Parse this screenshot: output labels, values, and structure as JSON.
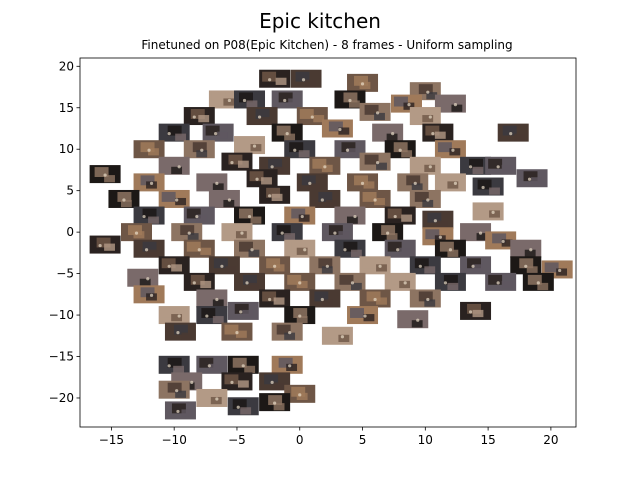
{
  "chart_data": {
    "type": "scatter",
    "title": "Epic kitchen",
    "subtitle": "Finetuned on P08(Epic Kitchen) - 8 frames - Uniform sampling",
    "xlabel": "",
    "ylabel": "",
    "xlim": [
      -17.5,
      22
    ],
    "ylim": [
      -23.5,
      21
    ],
    "xticks": [
      -15,
      -10,
      -5,
      0,
      5,
      10,
      15,
      20
    ],
    "yticks": [
      -20,
      -15,
      -10,
      -5,
      0,
      5,
      10,
      15,
      20
    ],
    "grid": false,
    "marker": "image-thumbnail",
    "colors": {
      "thumbnail_palette": [
        "#2a2220",
        "#4a3a32",
        "#6e5646",
        "#8d7462",
        "#b39a86",
        "#3b3a40",
        "#5f5860",
        "#1c1816",
        "#a07a5a",
        "#7a6a6a"
      ]
    },
    "points": [
      {
        "x": -2,
        "y": 18.5
      },
      {
        "x": 0.5,
        "y": 18.5
      },
      {
        "x": 5,
        "y": 18
      },
      {
        "x": 10,
        "y": 17
      },
      {
        "x": -6,
        "y": 16
      },
      {
        "x": -4,
        "y": 16
      },
      {
        "x": -1,
        "y": 16
      },
      {
        "x": 4,
        "y": 16
      },
      {
        "x": 8.5,
        "y": 15.5
      },
      {
        "x": 12,
        "y": 15.5
      },
      {
        "x": -8,
        "y": 14
      },
      {
        "x": -3,
        "y": 14
      },
      {
        "x": 1,
        "y": 14
      },
      {
        "x": 6,
        "y": 14.5
      },
      {
        "x": 10,
        "y": 14
      },
      {
        "x": -10,
        "y": 12
      },
      {
        "x": -6.5,
        "y": 12
      },
      {
        "x": -1,
        "y": 12
      },
      {
        "x": 3,
        "y": 12.5
      },
      {
        "x": 7,
        "y": 12
      },
      {
        "x": 11,
        "y": 12
      },
      {
        "x": 17,
        "y": 12
      },
      {
        "x": -12,
        "y": 10
      },
      {
        "x": -8,
        "y": 10
      },
      {
        "x": -4,
        "y": 10.5
      },
      {
        "x": 0,
        "y": 10
      },
      {
        "x": 4,
        "y": 10
      },
      {
        "x": 8,
        "y": 10
      },
      {
        "x": 12,
        "y": 10
      },
      {
        "x": -10,
        "y": 8
      },
      {
        "x": -5,
        "y": 8.5
      },
      {
        "x": -2,
        "y": 8
      },
      {
        "x": 2,
        "y": 8
      },
      {
        "x": 6,
        "y": 8.5
      },
      {
        "x": 10,
        "y": 8
      },
      {
        "x": 14,
        "y": 8
      },
      {
        "x": 16,
        "y": 8
      },
      {
        "x": -15.5,
        "y": 7
      },
      {
        "x": -12,
        "y": 6
      },
      {
        "x": -7,
        "y": 6
      },
      {
        "x": -3,
        "y": 6.5
      },
      {
        "x": 1,
        "y": 6
      },
      {
        "x": 5,
        "y": 6
      },
      {
        "x": 9,
        "y": 6
      },
      {
        "x": 12,
        "y": 6
      },
      {
        "x": 15,
        "y": 5.5
      },
      {
        "x": 18.5,
        "y": 6.5
      },
      {
        "x": -14,
        "y": 4
      },
      {
        "x": -10,
        "y": 4
      },
      {
        "x": -6,
        "y": 4
      },
      {
        "x": -2,
        "y": 4.5
      },
      {
        "x": 2,
        "y": 4
      },
      {
        "x": 6,
        "y": 4
      },
      {
        "x": 10,
        "y": 4
      },
      {
        "x": 15,
        "y": 2.5
      },
      {
        "x": -12,
        "y": 2
      },
      {
        "x": -8,
        "y": 2
      },
      {
        "x": -4,
        "y": 2
      },
      {
        "x": 0,
        "y": 2
      },
      {
        "x": 4,
        "y": 2
      },
      {
        "x": 8,
        "y": 2
      },
      {
        "x": 11,
        "y": 1.5
      },
      {
        "x": -13,
        "y": 0
      },
      {
        "x": -9,
        "y": 0
      },
      {
        "x": -5,
        "y": 0
      },
      {
        "x": -1,
        "y": 0
      },
      {
        "x": 3,
        "y": 0
      },
      {
        "x": 7,
        "y": 0
      },
      {
        "x": 11,
        "y": -0.5
      },
      {
        "x": 14,
        "y": 0
      },
      {
        "x": -15.5,
        "y": -1.5
      },
      {
        "x": -12,
        "y": -2
      },
      {
        "x": -8,
        "y": -2
      },
      {
        "x": -4,
        "y": -2
      },
      {
        "x": 0,
        "y": -2
      },
      {
        "x": 4,
        "y": -2
      },
      {
        "x": 8,
        "y": -2
      },
      {
        "x": 12,
        "y": -2
      },
      {
        "x": 16,
        "y": -1
      },
      {
        "x": 18,
        "y": -2
      },
      {
        "x": -10,
        "y": -4
      },
      {
        "x": -6,
        "y": -4
      },
      {
        "x": -2,
        "y": -4
      },
      {
        "x": 2,
        "y": -4
      },
      {
        "x": 6,
        "y": -4
      },
      {
        "x": 10,
        "y": -4
      },
      {
        "x": 14,
        "y": -4
      },
      {
        "x": 18,
        "y": -4
      },
      {
        "x": 20.5,
        "y": -4.5
      },
      {
        "x": -12.5,
        "y": -5.5
      },
      {
        "x": -8,
        "y": -6
      },
      {
        "x": -4,
        "y": -6
      },
      {
        "x": 0,
        "y": -6
      },
      {
        "x": 4,
        "y": -6
      },
      {
        "x": 8,
        "y": -6
      },
      {
        "x": 12,
        "y": -6
      },
      {
        "x": 16,
        "y": -6
      },
      {
        "x": 19,
        "y": -6
      },
      {
        "x": -12,
        "y": -7.5
      },
      {
        "x": -7,
        "y": -8
      },
      {
        "x": -2,
        "y": -8
      },
      {
        "x": 2,
        "y": -8
      },
      {
        "x": 6,
        "y": -8
      },
      {
        "x": 10,
        "y": -8
      },
      {
        "x": -10,
        "y": -10
      },
      {
        "x": -7,
        "y": -10
      },
      {
        "x": -4.5,
        "y": -9.5
      },
      {
        "x": 0,
        "y": -10
      },
      {
        "x": 5,
        "y": -10
      },
      {
        "x": 9,
        "y": -10.5
      },
      {
        "x": 14,
        "y": -9.5
      },
      {
        "x": -9.5,
        "y": -12
      },
      {
        "x": -5,
        "y": -12
      },
      {
        "x": -1,
        "y": -12
      },
      {
        "x": 3,
        "y": -12.5
      },
      {
        "x": -10,
        "y": -16
      },
      {
        "x": -7,
        "y": -16
      },
      {
        "x": -4.5,
        "y": -16
      },
      {
        "x": -1,
        "y": -16
      },
      {
        "x": -9,
        "y": -18
      },
      {
        "x": -5,
        "y": -18
      },
      {
        "x": -2,
        "y": -18
      },
      {
        "x": 0,
        "y": -19.5
      },
      {
        "x": -10,
        "y": -19
      },
      {
        "x": -7,
        "y": -20
      },
      {
        "x": -4.5,
        "y": -21
      },
      {
        "x": -9.5,
        "y": -21.5
      },
      {
        "x": -2,
        "y": -20.5
      }
    ]
  }
}
